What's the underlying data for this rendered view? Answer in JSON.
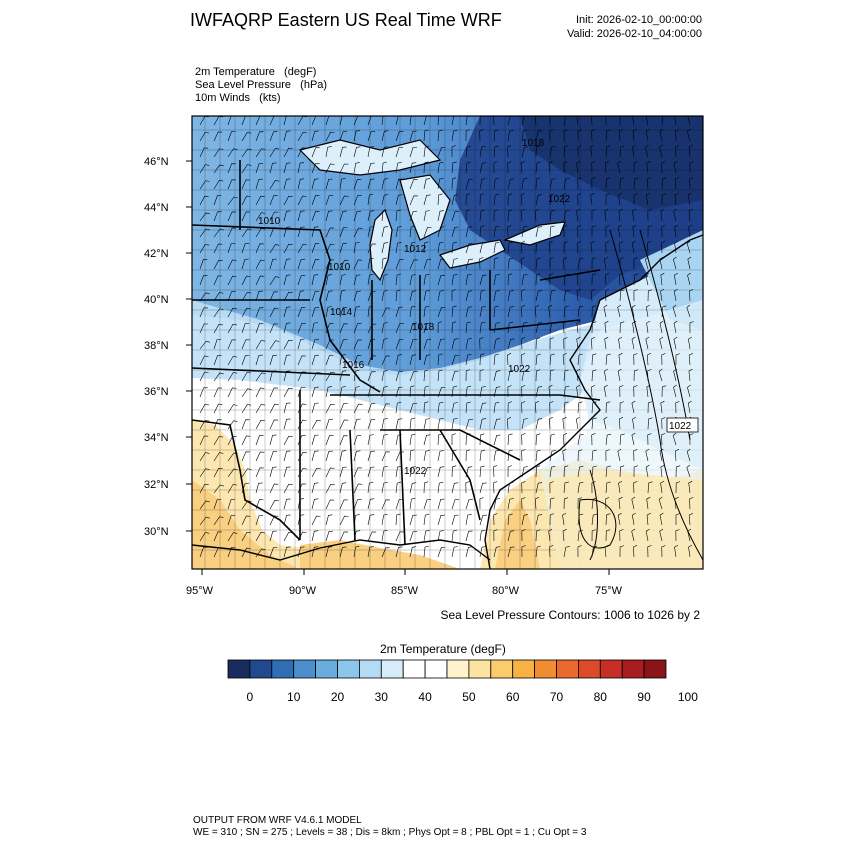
{
  "header": {
    "title": "IWFAQRP Eastern US Real Time WRF",
    "init": "Init: 2026-02-10_00:00:00",
    "valid": "Valid: 2026-02-10_04:00:00"
  },
  "fields": [
    {
      "name": "2m Temperature",
      "unit": "(degF)"
    },
    {
      "name": "Sea Level Pressure",
      "unit": "(hPa)"
    },
    {
      "name": "10m Winds",
      "unit": "(kts)"
    }
  ],
  "fields_text": [
    "2m Temperature   (degF)",
    "Sea Level Pressure   (hPa)",
    "10m Winds   (kts)"
  ],
  "map": {
    "lat_labels": [
      "46°N",
      "44°N",
      "42°N",
      "40°N",
      "38°N",
      "36°N",
      "34°N",
      "32°N",
      "30°N"
    ],
    "lon_labels": [
      "95°W",
      "90°W",
      "85°W",
      "80°W",
      "75°W"
    ],
    "contour_labels": [
      "1018",
      "1022",
      "1010",
      "1012",
      "1010",
      "1014",
      "1018",
      "1016",
      "1022",
      "1022",
      "1022"
    ],
    "colors": {
      "cold_deep": "#1d3f83",
      "cold": "#3a7cc4",
      "cool": "#8fc7ee",
      "neutral": "#ffffff",
      "warm": "#fde7b0",
      "warmer": "#f9c46a"
    }
  },
  "contour_note": "Sea Level Pressure Contours: 1006 to 1026 by 2",
  "colorbar": {
    "title": "2m Temperature  (degF)",
    "labels": [
      "0",
      "10",
      "20",
      "30",
      "40",
      "50",
      "60",
      "70",
      "80",
      "90",
      "100"
    ],
    "colors": [
      "#1a2b5e",
      "#214a8e",
      "#2f6db4",
      "#4b8fcc",
      "#6aacdc",
      "#8cc6ec",
      "#b3dbf5",
      "#d6ecfa",
      "#ffffff",
      "#ffffff",
      "#fff2cc",
      "#fde3a0",
      "#fbcc6e",
      "#f8b143",
      "#f28c33",
      "#ea6a2e",
      "#dc4a28",
      "#c52f25",
      "#a81d1f",
      "#8a1418"
    ]
  },
  "footer": {
    "line1": "OUTPUT FROM WRF V4.6.1 MODEL",
    "line2": "WE = 310 ; SN = 275 ; Levels = 38 ; Dis = 8km ; Phys Opt = 8 ; PBL Opt = 1 ; Cu Opt = 3"
  }
}
